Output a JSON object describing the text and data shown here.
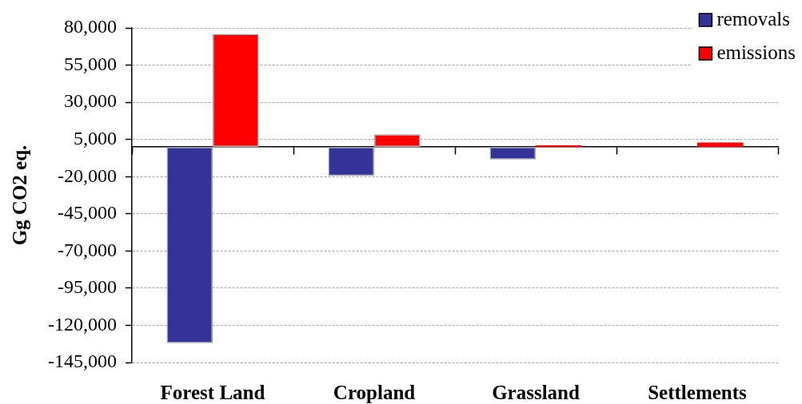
{
  "chart_data": {
    "type": "bar",
    "ylabel": "Gg CO2 eq.",
    "categories": [
      "Forest Land",
      "Cropland",
      "Grassland",
      "Settlements"
    ],
    "series": [
      {
        "name": "removals",
        "color": "#333399",
        "values": [
          -132000,
          -19500,
          -8500,
          null
        ]
      },
      {
        "name": "emissions",
        "color": "#ff0000",
        "values": [
          76000,
          8500,
          1000,
          3000
        ]
      }
    ],
    "ylim": [
      -145000,
      80000
    ],
    "yticks": [
      {
        "value": 80000,
        "label": "80,000"
      },
      {
        "value": 55000,
        "label": "55,000"
      },
      {
        "value": 30000,
        "label": "30,000"
      },
      {
        "value": 5000,
        "label": "5,000"
      },
      {
        "value": -20000,
        "label": "-20,000"
      },
      {
        "value": -45000,
        "label": "-45,000"
      },
      {
        "value": -70000,
        "label": "-70,000"
      },
      {
        "value": -95000,
        "label": "-95,000"
      },
      {
        "value": -120000,
        "label": "-120,000"
      },
      {
        "value": -145000,
        "label": "-145,000"
      }
    ],
    "grid": "y",
    "legend": "top right"
  }
}
